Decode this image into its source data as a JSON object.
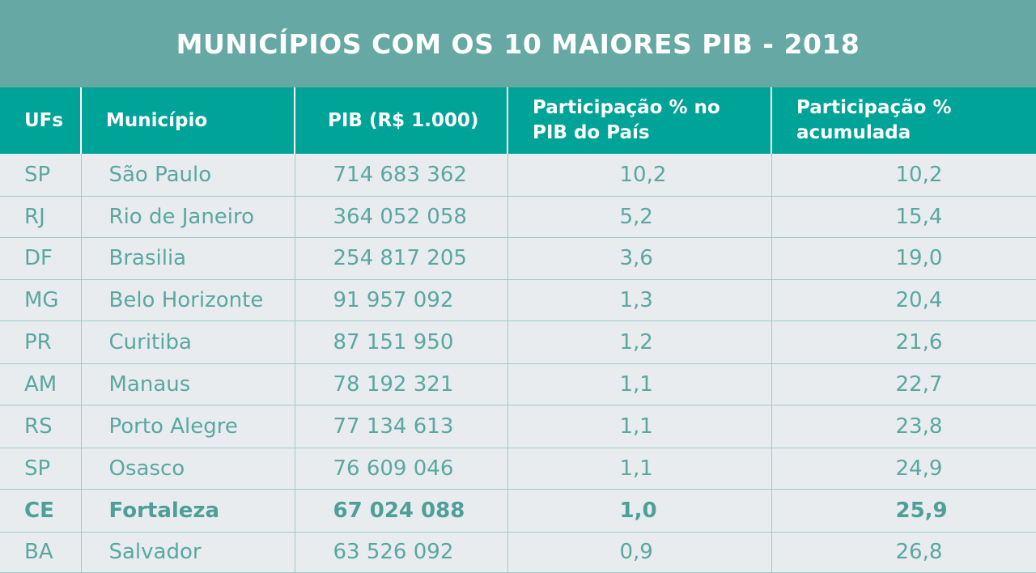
{
  "title": "MUNICÍPIOS COM OS 10 MAIORES PIB - 2018",
  "headers": {
    "uf": "UFs",
    "municipio": "Município",
    "pib": "PIB (R$ 1.000)",
    "part_pais_l1": "Participação % no",
    "part_pais_l2": "PIB do País",
    "part_acum_l1": "Participação %",
    "part_acum_l2": "acumulada"
  },
  "rows": [
    {
      "uf": "SP",
      "municipio": "São Paulo",
      "pib": "714 683 362",
      "part": "10,2",
      "acum": "10,2"
    },
    {
      "uf": "RJ",
      "municipio": "Rio de Janeiro",
      "pib": "364 052 058",
      "part": "5,2",
      "acum": "15,4"
    },
    {
      "uf": "DF",
      "municipio": "Brasilia",
      "pib": "254 817 205",
      "part": "3,6",
      "acum": "19,0"
    },
    {
      "uf": "MG",
      "municipio": "Belo Horizonte",
      "pib": "91 957 092",
      "part": "1,3",
      "acum": "20,4"
    },
    {
      "uf": "PR",
      "municipio": "Curitiba",
      "pib": "87 151 950",
      "part": "1,2",
      "acum": "21,6"
    },
    {
      "uf": "AM",
      "municipio": "Manaus",
      "pib": "78 192 321",
      "part": "1,1",
      "acum": "22,7"
    },
    {
      "uf": "RS",
      "municipio": "Porto Alegre",
      "pib": "77 134 613",
      "part": "1,1",
      "acum": "23,8"
    },
    {
      "uf": "SP",
      "municipio": "Osasco",
      "pib": "76 609 046",
      "part": "1,1",
      "acum": "24,9"
    },
    {
      "uf": "CE",
      "municipio": "Fortaleza",
      "pib": "67 024 088",
      "part": "1,0",
      "acum": "25,9",
      "highlight": true
    },
    {
      "uf": "BA",
      "municipio": "Salvador",
      "pib": "63 526 092",
      "part": "0,9",
      "acum": "26,8"
    }
  ]
}
